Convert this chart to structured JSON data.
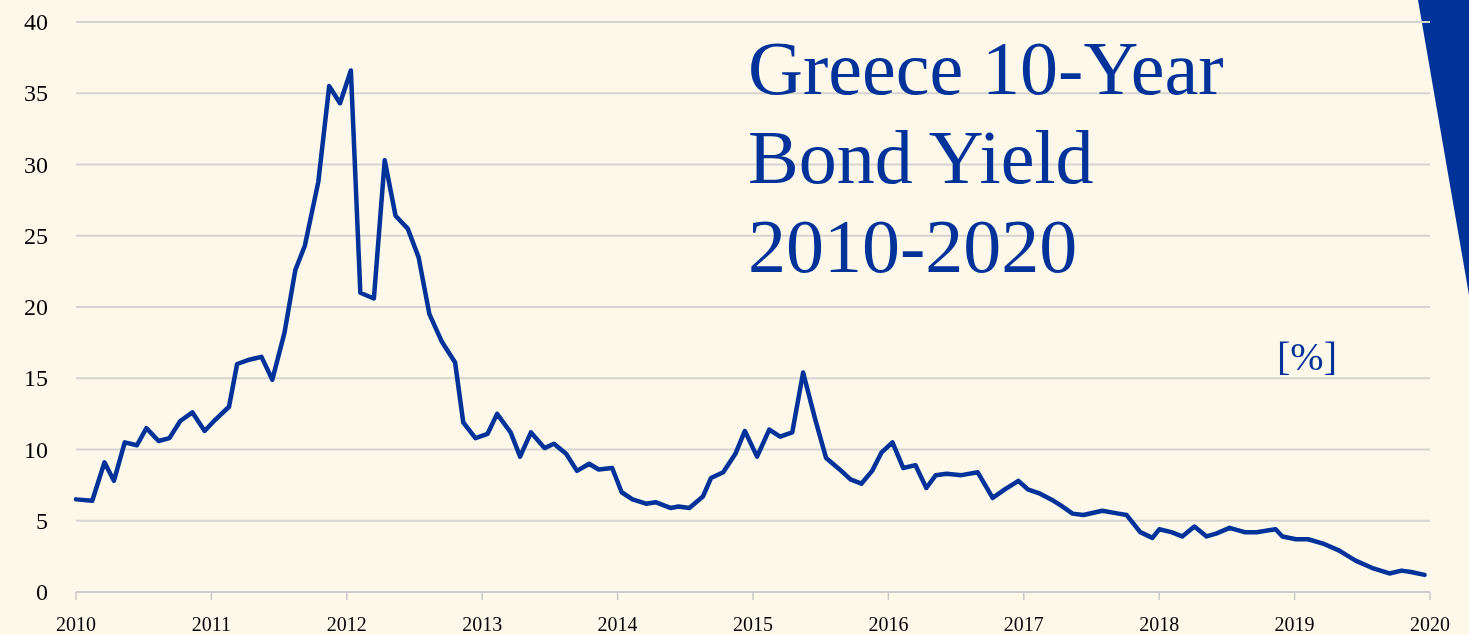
{
  "chart_data": {
    "type": "line",
    "title": "Greece 10-Year Bond Yield 2010-2020",
    "ylabel": "[%]",
    "x": [
      2010,
      2010.12,
      2010.21,
      2010.28,
      2010.36,
      2010.45,
      2010.52,
      2010.61,
      2010.69,
      2010.77,
      2010.86,
      2010.95,
      2011.03,
      2011.13,
      2011.19,
      2011.28,
      2011.37,
      2011.45,
      2011.54,
      2011.62,
      2011.69,
      2011.79,
      2011.87,
      2011.95,
      2012.03,
      2012.1,
      2012.2,
      2012.28,
      2012.36,
      2012.45,
      2012.53,
      2012.61,
      2012.7,
      2012.8,
      2012.86,
      2012.95,
      2013.04,
      2013.11,
      2013.21,
      2013.28,
      2013.36,
      2013.46,
      2013.53,
      2013.62,
      2013.7,
      2013.79,
      2013.86,
      2013.96,
      2014.03,
      2014.11,
      2014.21,
      2014.28,
      2014.39,
      2014.45,
      2014.53,
      2014.63,
      2014.69,
      2014.78,
      2014.87,
      2014.94,
      2015.03,
      2015.12,
      2015.2,
      2015.29,
      2015.37,
      2015.46,
      2015.54,
      2015.64,
      2015.72,
      2015.8,
      2015.88,
      2015.95,
      2016.03,
      2016.11,
      2016.2,
      2016.28,
      2016.35,
      2016.43,
      2016.54,
      2016.66,
      2016.77,
      2016.86,
      2016.96,
      2017.03,
      2017.12,
      2017.22,
      2017.27,
      2017.36,
      2017.44,
      2017.58,
      2017.7,
      2017.76,
      2017.86,
      2017.95,
      2018,
      2018.09,
      2018.17,
      2018.26,
      2018.35,
      2018.42,
      2018.52,
      2018.63,
      2018.72,
      2018.86,
      2018.91,
      2019.01,
      2019.1,
      2019.21,
      2019.33,
      2019.45,
      2019.57,
      2019.7,
      2019.79,
      2019.86,
      2019.96
    ],
    "series": [
      {
        "color": "#003399",
        "values": [
          6.5,
          6.4,
          9.1,
          7.8,
          10.5,
          10.3,
          11.5,
          10.6,
          10.8,
          12,
          12.6,
          11.3,
          12.1,
          13,
          16,
          16.3,
          16.5,
          14.9,
          18.2,
          22.6,
          24.3,
          28.8,
          35.5,
          34.3,
          36.6,
          21,
          20.6,
          30.3,
          26.4,
          25.5,
          23.5,
          19.5,
          17.6,
          16.1,
          11.9,
          10.8,
          11.1,
          12.5,
          11.2,
          9.5,
          11.2,
          10.1,
          10.4,
          9.7,
          8.5,
          9,
          8.6,
          8.7,
          7,
          6.5,
          6.2,
          6.3,
          5.9,
          6,
          5.9,
          6.7,
          8,
          8.4,
          9.7,
          11.3,
          9.5,
          11.4,
          10.9,
          11.2,
          15.4,
          12.1,
          9.4,
          8.6,
          7.9,
          7.6,
          8.5,
          9.8,
          10.5,
          8.7,
          8.9,
          7.3,
          8.2,
          8.3,
          8.2,
          8.4,
          6.6,
          7.2,
          7.8,
          7.2,
          6.9,
          6.4,
          6.1,
          5.5,
          5.4,
          5.7,
          5.5,
          5.4,
          4.2,
          3.8,
          4.4,
          4.2,
          3.9,
          4.6,
          3.9,
          4.1,
          4.5,
          4.2,
          4.2,
          4.4,
          3.9,
          3.7,
          3.7,
          3.4,
          2.9,
          2.2,
          1.7,
          1.3,
          1.5,
          1.4,
          1.2
        ]
      }
    ],
    "xlim": [
      2010,
      2020
    ],
    "xticks": [
      2010,
      2011,
      2012,
      2013,
      2014,
      2015,
      2016,
      2017,
      2018,
      2019,
      2020
    ],
    "ylim": [
      0,
      40
    ],
    "yticks": [
      0,
      5,
      10,
      15,
      20,
      25,
      30,
      35,
      40
    ],
    "grid": "y",
    "marker": "none",
    "line_style": "solid"
  }
}
